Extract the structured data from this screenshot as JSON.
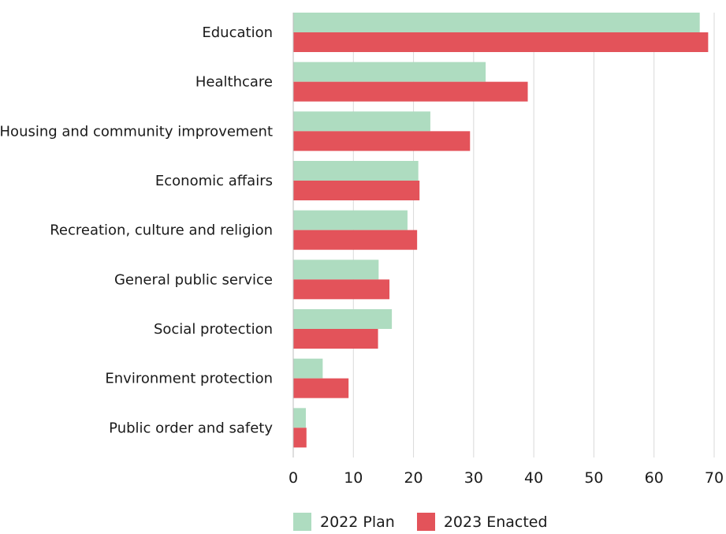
{
  "chart_data": {
    "type": "bar",
    "orientation": "horizontal",
    "categories": [
      "Education",
      "Healthcare",
      "Housing and community improvement",
      "Economic affairs",
      "Recreation, culture and religion",
      "General public service",
      "Social protection",
      "Environment protection",
      "Public order and safety"
    ],
    "series": [
      {
        "name": "2022 Plan",
        "color": "#aedcc0",
        "values": [
          67.6,
          32.0,
          22.8,
          20.8,
          19.0,
          14.2,
          16.4,
          4.9,
          2.1
        ]
      },
      {
        "name": "2023 Enacted",
        "color": "#e3535a",
        "values": [
          69.0,
          39.0,
          29.4,
          21.0,
          20.6,
          16.0,
          14.1,
          9.2,
          2.2
        ]
      }
    ],
    "x_ticks": [
      "0",
      "10",
      "20",
      "30",
      "40",
      "50",
      "60",
      "70"
    ],
    "xlim": [
      0,
      70
    ],
    "grid": "vertical",
    "legend_position": "bottom"
  }
}
